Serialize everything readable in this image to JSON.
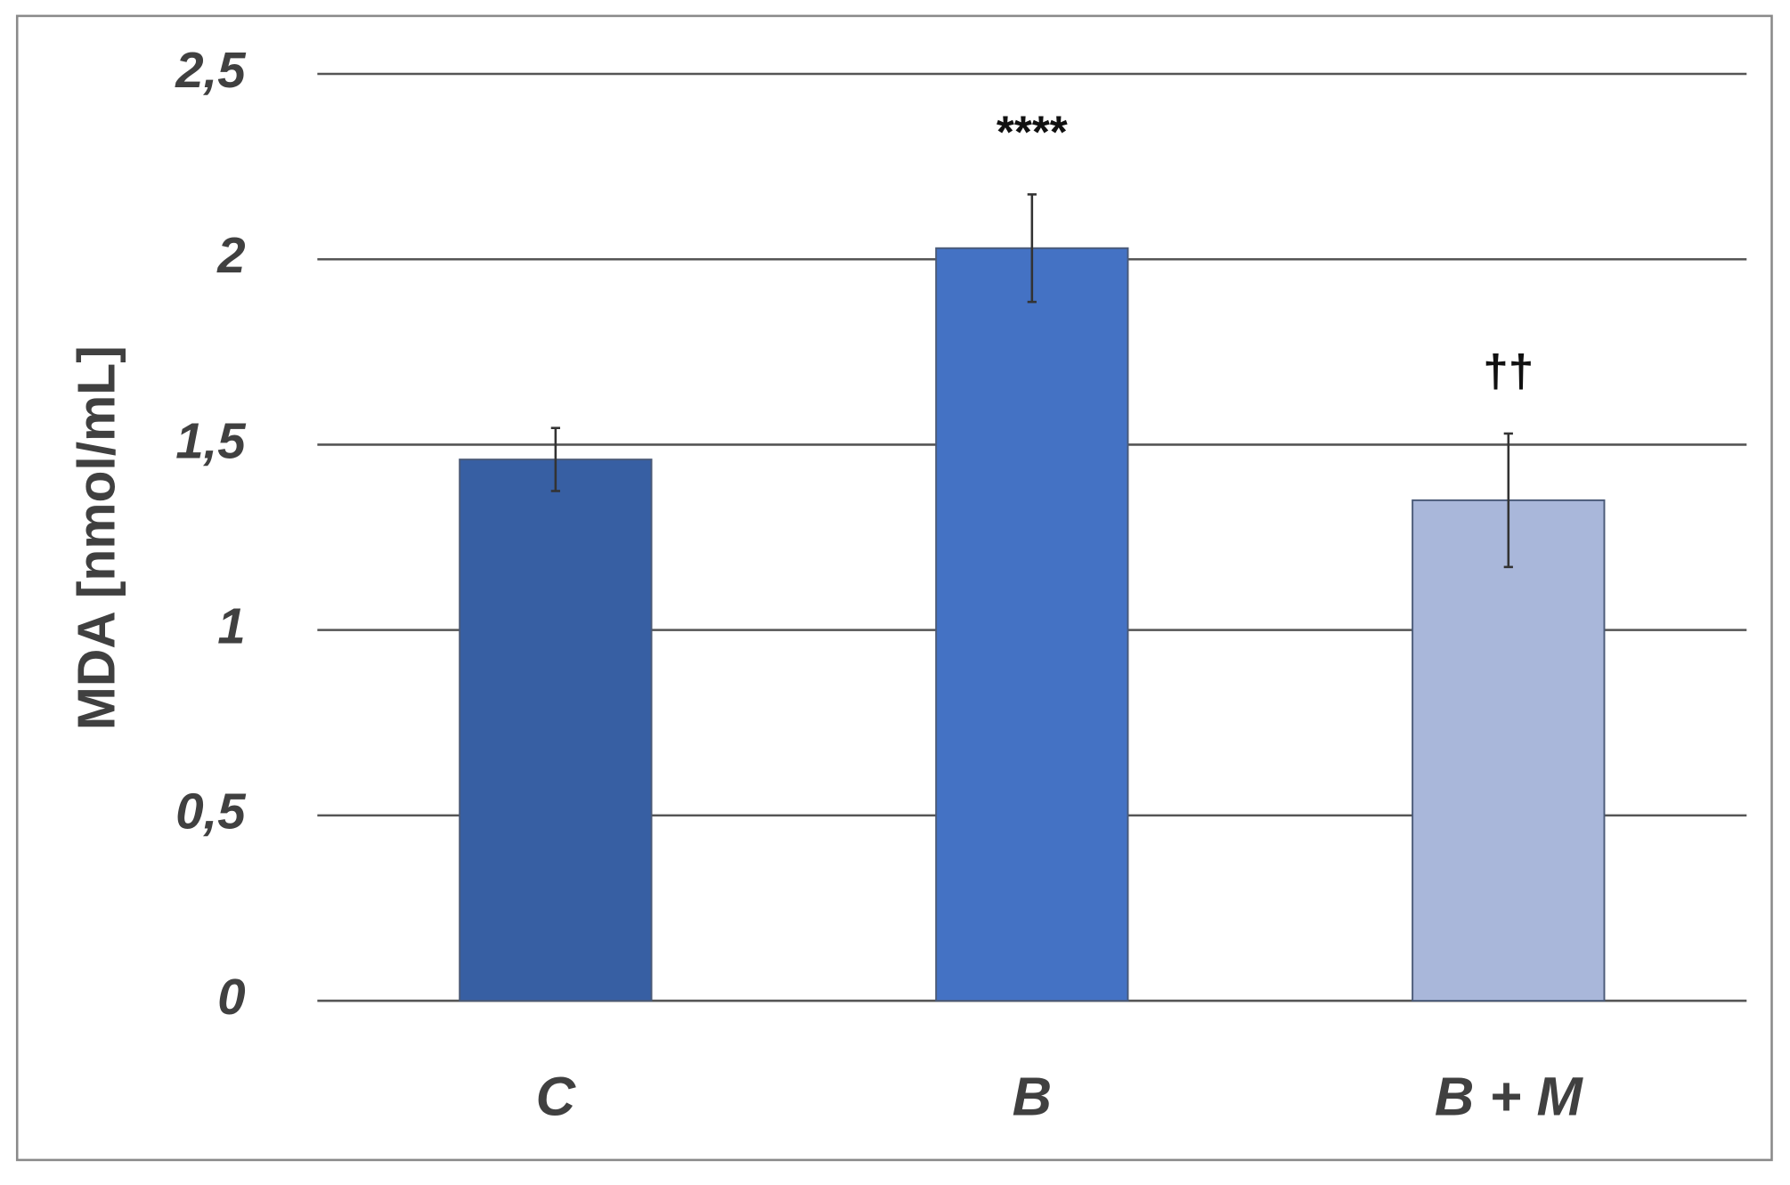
{
  "chart_data": {
    "type": "bar",
    "y_label": "MDA [nmol/mL]",
    "categories": [
      "C",
      "B",
      "B + M"
    ],
    "values": [
      1.46,
      2.03,
      1.35
    ],
    "errors": [
      0.085,
      0.145,
      0.18
    ],
    "colors": [
      "#375fa3",
      "#4472c4",
      "#a9b7da"
    ],
    "annotations": [
      {
        "category": "B",
        "text": "****"
      },
      {
        "category": "B + M",
        "text": "††"
      }
    ],
    "ylim": [
      0,
      2.5
    ],
    "yticks": [
      0,
      {
        "value": 0.5,
        "label": "0,5"
      },
      1,
      {
        "value": 1.5,
        "label": "1,5"
      },
      2,
      {
        "value": 2.5,
        "label": "2,5"
      }
    ],
    "grid": true
  }
}
